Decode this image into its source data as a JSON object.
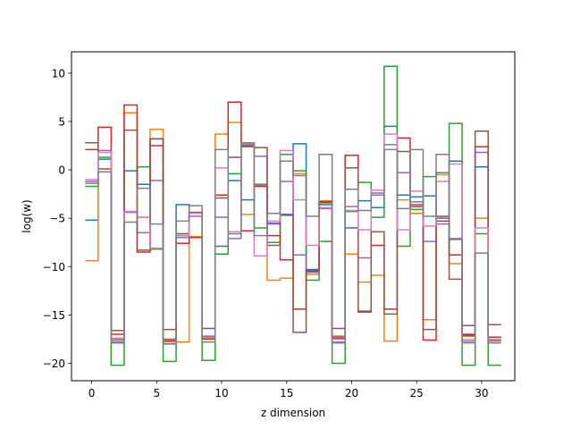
{
  "chart_data": {
    "type": "line",
    "style": "steps-mid",
    "title": "",
    "xlabel": "z dimension",
    "ylabel": "log(w)",
    "xlim": [
      -1.55,
      32.55
    ],
    "ylim": [
      -21.8,
      12.2
    ],
    "xticks": [
      0,
      5,
      10,
      15,
      20,
      25,
      30
    ],
    "yticks": [
      -20,
      -15,
      -10,
      -5,
      0,
      5,
      10
    ],
    "grid": false,
    "legend": false,
    "series": [
      {
        "color": "#1f77b4",
        "x": [
          0,
          1,
          2,
          3,
          4,
          5,
          6,
          7,
          8,
          9,
          10,
          11,
          12,
          13,
          14,
          15,
          16,
          17,
          18,
          19,
          20,
          21,
          22,
          23,
          24,
          25,
          26,
          27,
          28,
          29,
          30,
          31
        ],
        "values": [
          -5.2,
          1.1,
          -17.6,
          -0.1,
          -1.5,
          3.2,
          -17.5,
          -3.6,
          -4.5,
          -17.2,
          -7.9,
          -1.1,
          -3.1,
          -1.5,
          -5.5,
          -4.7,
          2.7,
          -10.4,
          -3.6,
          -17.2,
          -6.0,
          -3.2,
          -3.9,
          4.5,
          -2.6,
          -2.8,
          -2.7,
          -5.0,
          0.9,
          -17.0,
          0.3,
          -17.3
        ]
      },
      {
        "color": "#ff7f0e",
        "x": [
          0,
          1,
          2,
          3,
          4,
          5,
          6,
          7,
          8,
          9,
          10,
          11,
          12,
          13,
          14,
          15,
          16,
          17,
          18,
          19,
          20,
          21,
          22,
          23,
          24,
          25,
          26,
          27,
          28,
          29,
          30,
          31
        ],
        "values": [
          -9.4,
          -0.2,
          -17.4,
          5.9,
          -4.9,
          4.2,
          -17.6,
          -17.8,
          -6.9,
          -17.4,
          3.7,
          4.9,
          -4.6,
          -1.6,
          -11.4,
          -11.2,
          -0.4,
          -10.8,
          -3.2,
          -17.3,
          -8.7,
          -11.6,
          -10.9,
          -17.7,
          -3.1,
          -4.5,
          -15.5,
          -0.5,
          -9.7,
          -17.2,
          -5.0,
          -17.6
        ]
      },
      {
        "color": "#2ca02c",
        "x": [
          0,
          1,
          2,
          3,
          4,
          5,
          6,
          7,
          8,
          9,
          10,
          11,
          12,
          13,
          14,
          15,
          16,
          17,
          18,
          19,
          20,
          21,
          22,
          23,
          24,
          25,
          26,
          27,
          28,
          29,
          30,
          31
        ],
        "values": [
          -1.7,
          1.3,
          -20.2,
          -4.3,
          0.3,
          -8.2,
          -19.8,
          -6.8,
          -7.0,
          -19.7,
          -8.7,
          -0.4,
          2.5,
          -6.0,
          -7.5,
          1.6,
          -0.1,
          -11.4,
          -7.4,
          -20.0,
          -4.3,
          -1.3,
          -4.9,
          10.7,
          -7.9,
          -4.1,
          -0.7,
          -0.3,
          4.8,
          -20.2,
          -6.6,
          -20.2
        ]
      },
      {
        "color": "#d62728",
        "x": [
          0,
          1,
          2,
          3,
          4,
          5,
          6,
          7,
          8,
          9,
          10,
          11,
          12,
          13,
          14,
          15,
          16,
          17,
          18,
          19,
          20,
          21,
          22,
          23,
          24,
          25,
          26,
          27,
          28,
          29,
          30,
          31
        ],
        "values": [
          2.1,
          4.4,
          -17.0,
          6.7,
          -8.5,
          2.5,
          -17.7,
          -7.6,
          -7.0,
          -17.5,
          -2.6,
          7.0,
          -6.3,
          -1.7,
          -6.8,
          -9.3,
          -14.4,
          -10.5,
          -3.3,
          -17.4,
          1.5,
          -14.7,
          -7.8,
          -14.4,
          3.3,
          -3.8,
          -17.6,
          -5.3,
          -8.8,
          -17.1,
          2.4,
          -17.3
        ]
      },
      {
        "color": "#9467bd",
        "x": [
          0,
          1,
          2,
          3,
          4,
          5,
          6,
          7,
          8,
          9,
          10,
          11,
          12,
          13,
          14,
          15,
          16,
          17,
          18,
          19,
          20,
          21,
          22,
          23,
          24,
          25,
          26,
          27,
          28,
          29,
          30,
          31
        ],
        "values": [
          -1.2,
          2.0,
          -17.9,
          -4.4,
          -6.5,
          -1.1,
          -18.0,
          -7.0,
          -4.8,
          -17.8,
          -4.9,
          -6.6,
          2.6,
          1.4,
          -5.6,
          -1.2,
          -8.8,
          -10.6,
          -4.0,
          -17.9,
          -3.8,
          -9.1,
          -2.6,
          2.6,
          -0.3,
          -3.3,
          -7.4,
          -5.6,
          -7.2,
          -17.6,
          1.8,
          -17.7
        ]
      },
      {
        "color": "#8c564b",
        "x": [
          0,
          1,
          2,
          3,
          4,
          5,
          6,
          7,
          8,
          9,
          10,
          11,
          12,
          13,
          14,
          15,
          16,
          17,
          18,
          19,
          20,
          21,
          22,
          23,
          24,
          25,
          26,
          27,
          28,
          29,
          30,
          31
        ],
        "values": [
          2.8,
          0.1,
          -16.6,
          4.1,
          -8.3,
          3.2,
          -16.5,
          -6.6,
          -4.4,
          -16.4,
          -2.9,
          1.3,
          2.4,
          2.3,
          -7.8,
          -4.6,
          -16.8,
          -10.3,
          -3.4,
          -16.4,
          0.2,
          -14.6,
          -6.4,
          -14.9,
          1.9,
          -3.6,
          -16.5,
          -4.8,
          -11.3,
          -16.1,
          4.0,
          -16.0
        ]
      },
      {
        "color": "#e377c2",
        "x": [
          0,
          1,
          2,
          3,
          4,
          5,
          6,
          7,
          8,
          9,
          10,
          11,
          12,
          13,
          14,
          15,
          16,
          17,
          18,
          19,
          20,
          21,
          22,
          23,
          24,
          25,
          26,
          27,
          28,
          29,
          30,
          31
        ],
        "values": [
          -1.0,
          1.8,
          -17.5,
          -4.3,
          -4.9,
          -8.1,
          -17.8,
          -6.8,
          -4.5,
          -17.3,
          0.2,
          -6.4,
          2.7,
          -8.9,
          -5.3,
          2.0,
          -3.1,
          -7.8,
          -3.9,
          -17.5,
          -4.2,
          -6.2,
          -2.1,
          3.7,
          -6.2,
          -2.2,
          -5.8,
          -1.2,
          0.6,
          -17.9,
          -6.0,
          -17.5
        ]
      },
      {
        "color": "#7f7f7f",
        "x": [
          0,
          1,
          2,
          3,
          4,
          5,
          6,
          7,
          8,
          9,
          10,
          11,
          12,
          13,
          14,
          15,
          16,
          17,
          18,
          19,
          20,
          21,
          22,
          23,
          24,
          25,
          26,
          27,
          28,
          29,
          30,
          31
        ],
        "values": [
          -1.4,
          -0.2,
          -17.8,
          -5.4,
          -1.9,
          -5.6,
          -18.0,
          -5.3,
          -3.7,
          -17.8,
          2.1,
          -7.1,
          2.8,
          -6.8,
          -4.5,
          0.9,
          -0.6,
          -4.8,
          1.6,
          -17.8,
          -2.0,
          -4.2,
          -2.4,
          2.1,
          -4.0,
          2.1,
          -4.8,
          1.6,
          -7.1,
          -17.8,
          -8.6,
          -17.9
        ]
      }
    ]
  }
}
